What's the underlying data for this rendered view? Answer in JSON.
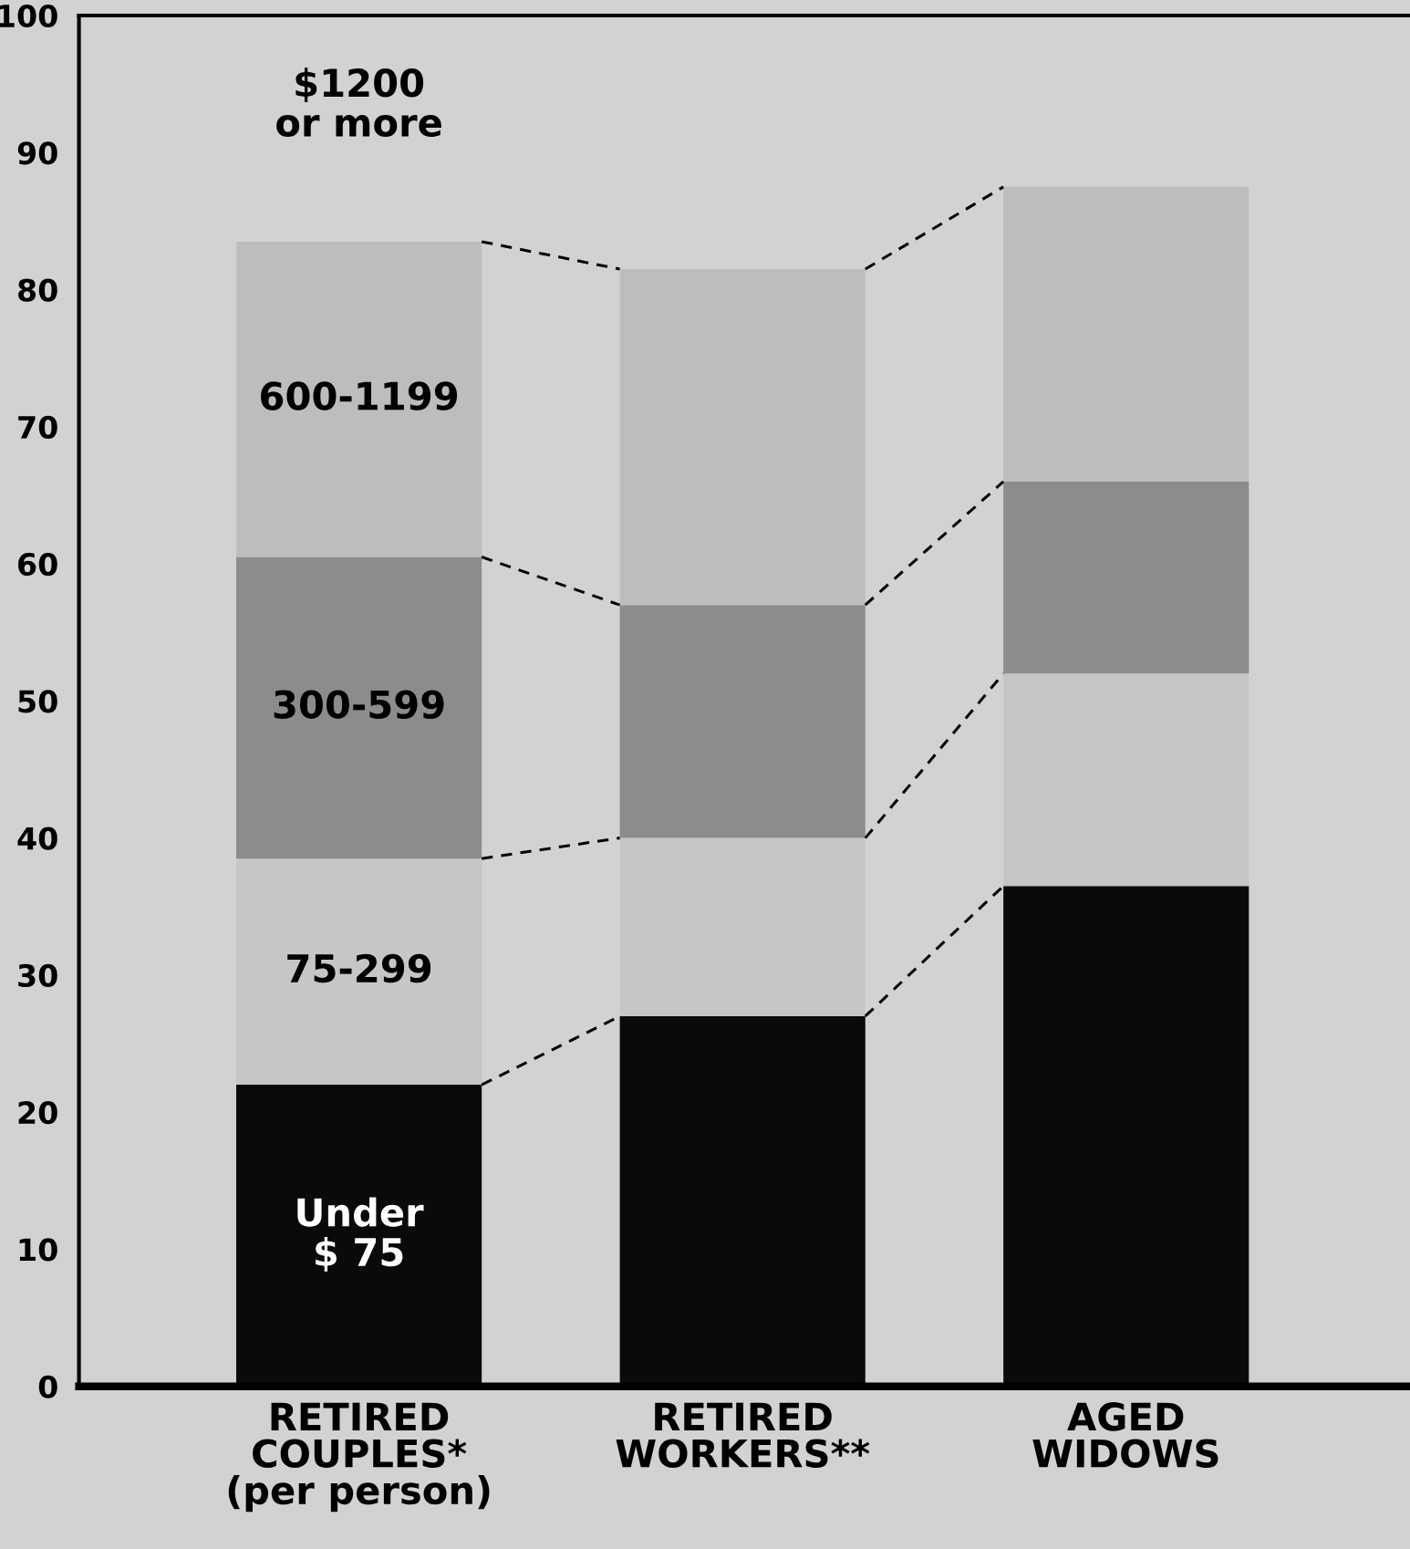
{
  "chart_data": {
    "type": "bar",
    "stacked": true,
    "categories": [
      "RETIRED\nCOUPLES*\n(per person)",
      "RETIRED\nWORKERS**",
      "AGED\nWIDOWS"
    ],
    "series": [
      {
        "name": "Under\n$ 75",
        "color": "#0a0a0a",
        "values": [
          22,
          27,
          36.5
        ]
      },
      {
        "name": "75-299",
        "color": "#c6c6c6",
        "values": [
          16.5,
          13,
          15.5
        ]
      },
      {
        "name": "300-599",
        "color": "#8c8c8c",
        "values": [
          22,
          17,
          14
        ]
      },
      {
        "name": "600-1199",
        "color": "#bdbdbd",
        "values": [
          23,
          24.5,
          21.5
        ]
      }
    ],
    "annotations": [
      "$1200\nor more"
    ],
    "ylim": [
      0,
      100
    ],
    "yticks": [
      0,
      10,
      20,
      30,
      40,
      50,
      60,
      70,
      80,
      90,
      100
    ],
    "grid": false,
    "legend": false
  }
}
